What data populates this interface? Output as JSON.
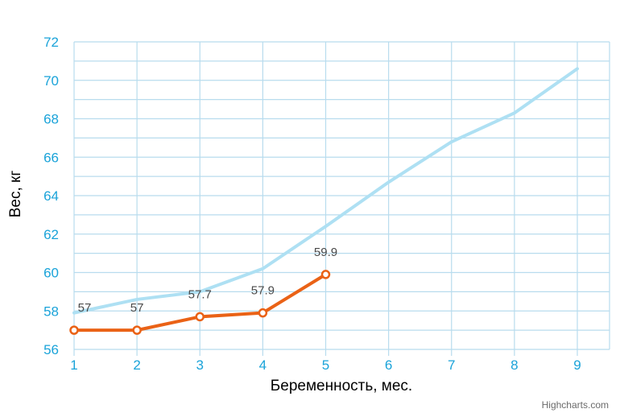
{
  "colors": {
    "axis_text": "#1aa3d9",
    "grid": "#b8dcee",
    "reference_line": "#aee0f3",
    "actual_line": "#ea6216",
    "data_label": "#4a4a4a",
    "credits": "#6b6b6b"
  },
  "credits": "Highcharts.com",
  "chart_data": {
    "type": "line",
    "title": "",
    "xlabel": "Беременность, мес.",
    "ylabel": "Вес, кг",
    "x": [
      1,
      2,
      3,
      4,
      5,
      6,
      7,
      8,
      9
    ],
    "xlim": [
      1,
      9
    ],
    "ylim": [
      56,
      72
    ],
    "y_ticks": [
      56,
      58,
      60,
      62,
      64,
      66,
      68,
      70,
      72
    ],
    "x_ticks": [
      1,
      2,
      3,
      4,
      5,
      6,
      7,
      8,
      9
    ],
    "grid": true,
    "legend": "none",
    "series": [
      {
        "id": "reference",
        "x": [
          1,
          2,
          3,
          4,
          5,
          6,
          7,
          8,
          9
        ],
        "values": [
          57.9,
          58.6,
          59.0,
          60.2,
          62.4,
          64.7,
          66.8,
          68.3,
          70.6
        ],
        "markers": false,
        "data_labels": false
      },
      {
        "id": "actual",
        "x": [
          1,
          2,
          3,
          4,
          5
        ],
        "values": [
          57,
          57,
          57.7,
          57.9,
          59.9
        ],
        "markers": true,
        "data_labels": true
      }
    ]
  }
}
